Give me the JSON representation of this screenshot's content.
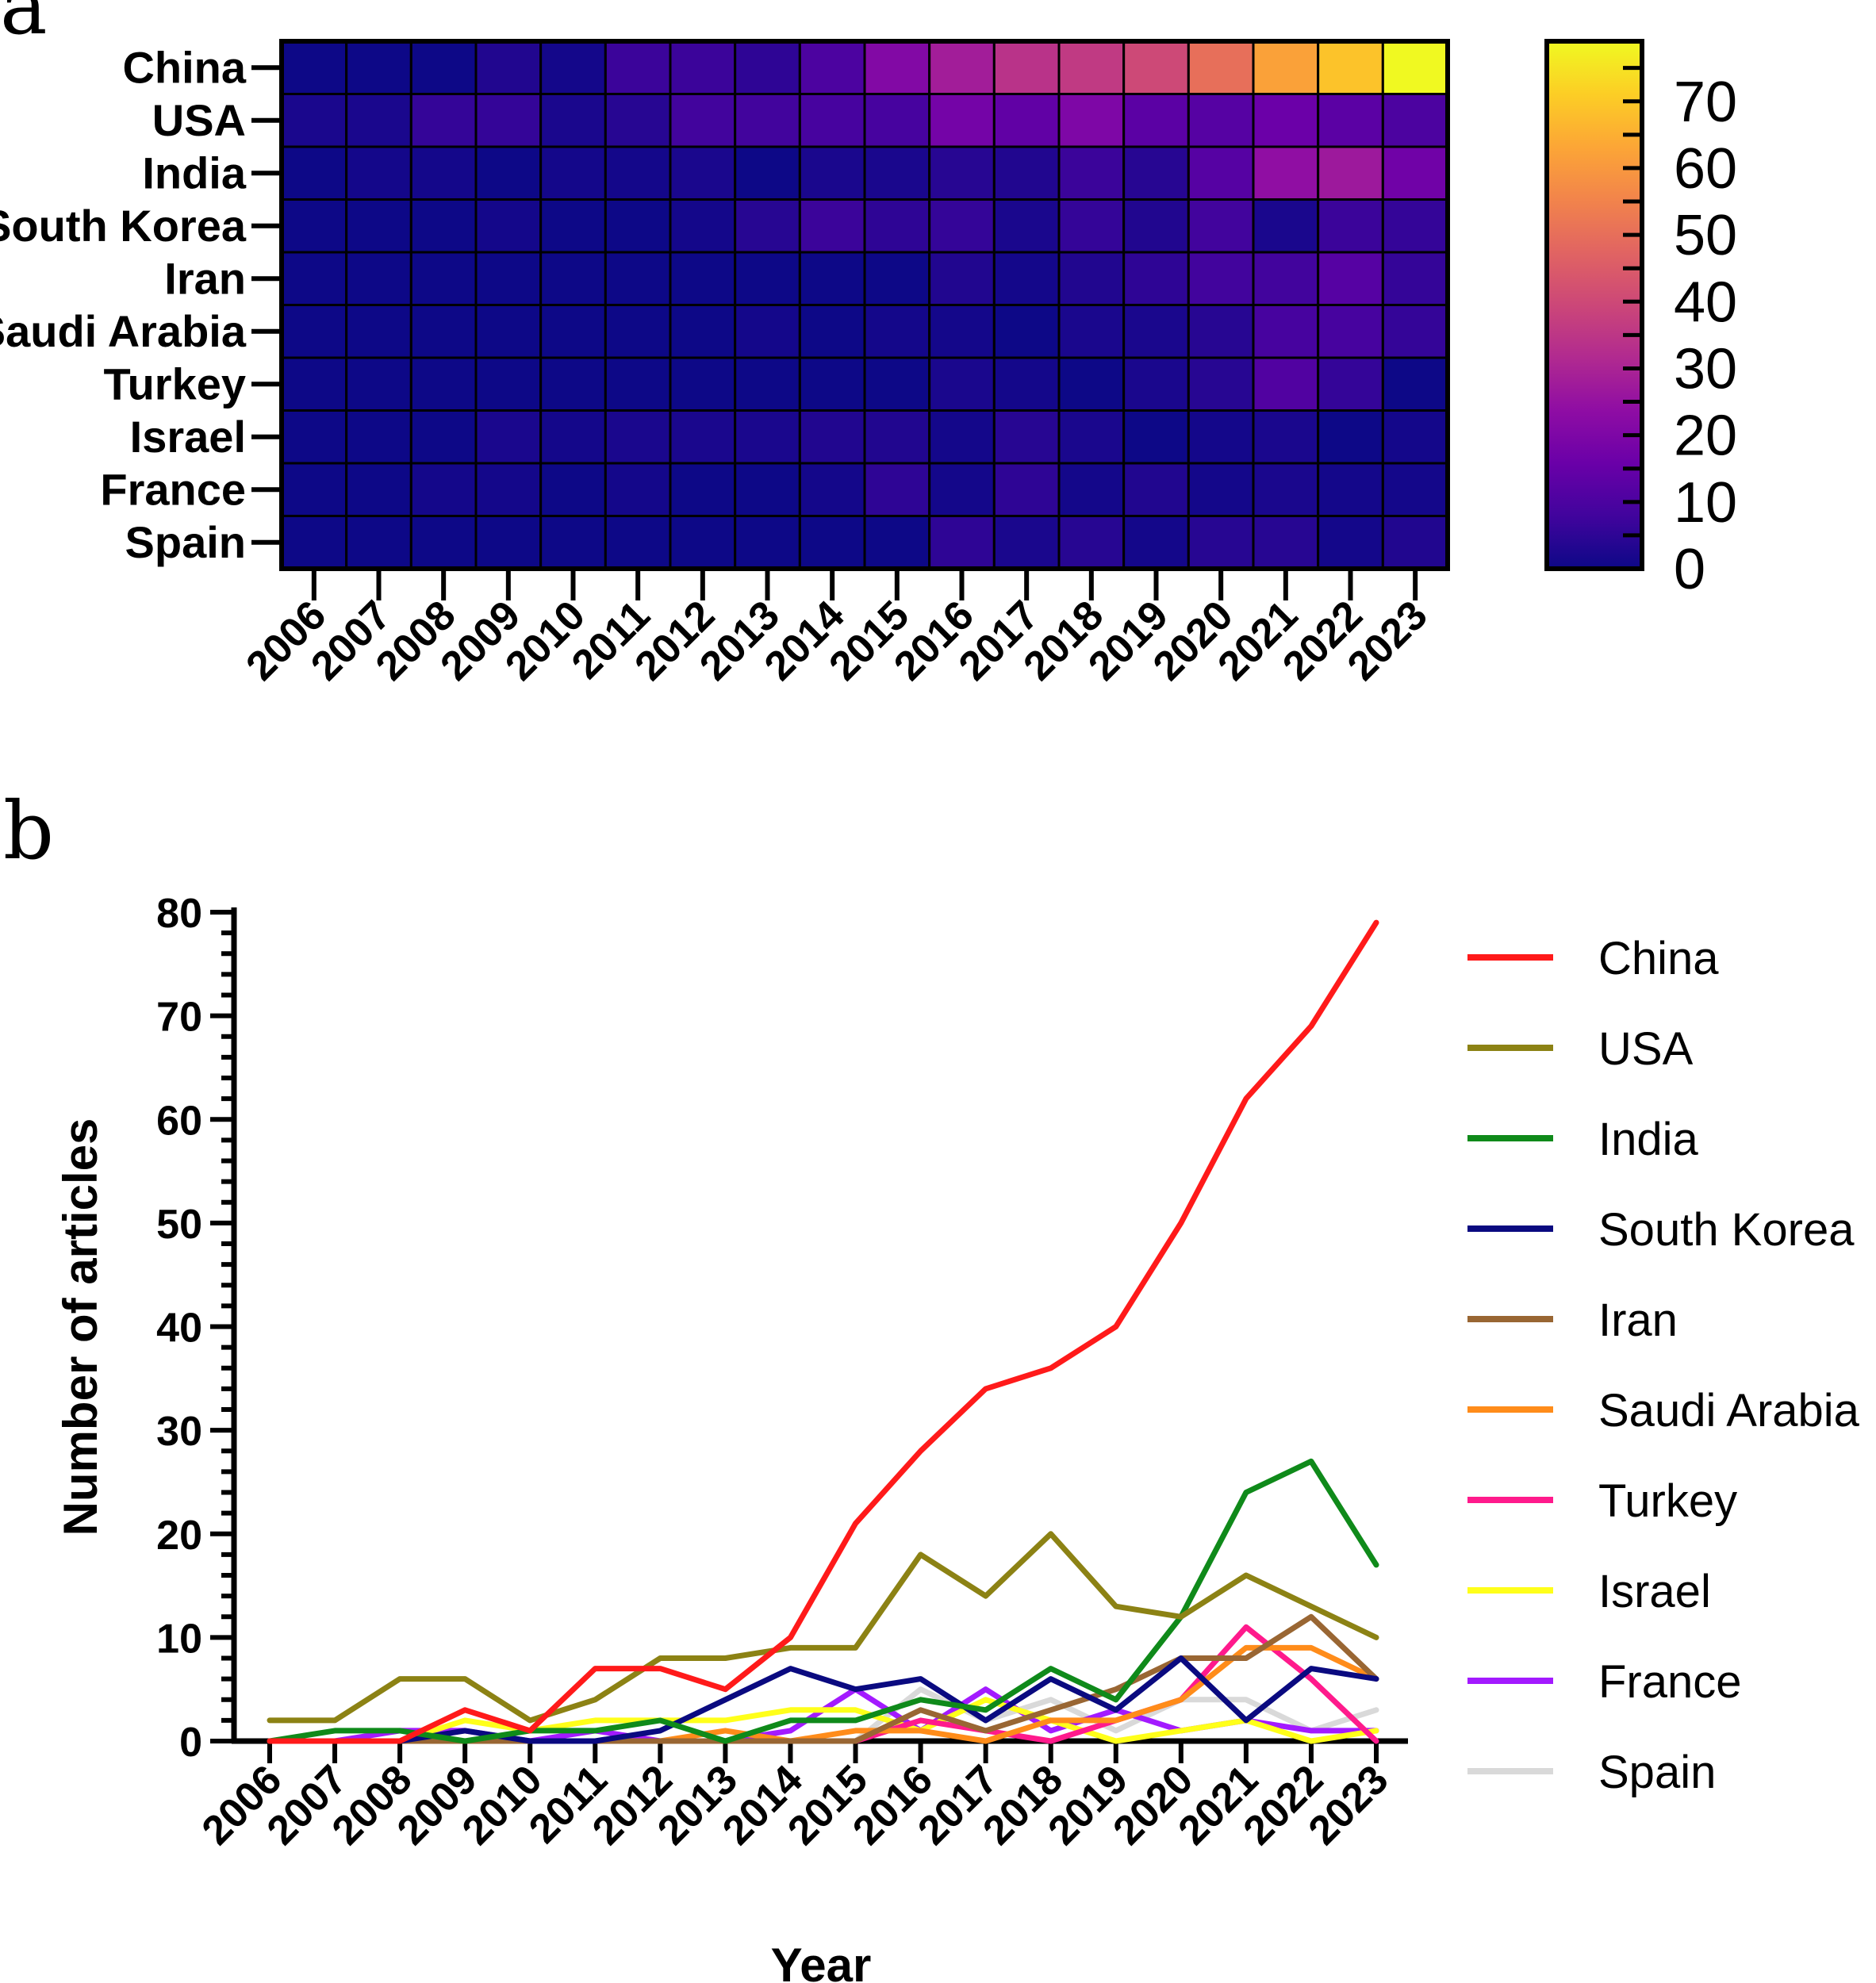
{
  "panels": {
    "a": "a",
    "b": "b"
  },
  "chart_data": [
    {
      "type": "heatmap",
      "title": "",
      "rows": [
        "China",
        "USA",
        "India",
        "South Korea",
        "Iran",
        "Saudi Arabia",
        "Turkey",
        "Israel",
        "France",
        "Spain"
      ],
      "columns": [
        "2006",
        "2007",
        "2008",
        "2009",
        "2010",
        "2011",
        "2012",
        "2013",
        "2014",
        "2015",
        "2016",
        "2017",
        "2018",
        "2019",
        "2020",
        "2021",
        "2022",
        "2023"
      ],
      "values": [
        [
          0,
          0,
          0,
          3,
          1,
          7,
          7,
          5,
          10,
          21,
          28,
          34,
          36,
          40,
          50,
          62,
          69,
          79
        ],
        [
          2,
          2,
          6,
          6,
          2,
          4,
          8,
          8,
          9,
          9,
          18,
          14,
          20,
          13,
          12,
          16,
          13,
          10
        ],
        [
          0,
          1,
          1,
          0,
          1,
          1,
          2,
          0,
          2,
          2,
          4,
          3,
          7,
          4,
          12,
          24,
          27,
          17
        ],
        [
          0,
          0,
          0,
          1,
          0,
          0,
          1,
          4,
          7,
          5,
          6,
          2,
          6,
          3,
          8,
          2,
          7,
          6
        ],
        [
          0,
          0,
          0,
          0,
          0,
          0,
          0,
          0,
          0,
          0,
          3,
          1,
          3,
          5,
          8,
          8,
          12,
          6
        ],
        [
          0,
          0,
          0,
          0,
          0,
          0,
          0,
          1,
          0,
          1,
          1,
          0,
          2,
          2,
          4,
          9,
          9,
          6
        ],
        [
          0,
          0,
          0,
          0,
          0,
          0,
          0,
          0,
          0,
          0,
          2,
          1,
          0,
          2,
          4,
          11,
          6,
          0
        ],
        [
          0,
          0,
          0,
          2,
          1,
          2,
          2,
          2,
          3,
          3,
          1,
          4,
          2,
          0,
          1,
          2,
          0,
          1
        ],
        [
          0,
          0,
          1,
          1,
          0,
          1,
          0,
          0,
          1,
          5,
          1,
          5,
          1,
          3,
          1,
          2,
          1,
          1
        ],
        [
          0,
          0,
          0,
          0,
          0,
          0,
          0,
          0,
          0,
          0,
          5,
          2,
          4,
          1,
          4,
          4,
          1,
          3
        ]
      ],
      "colorbar": {
        "min": 0,
        "max": 79,
        "ticks": [
          "0",
          "10",
          "20",
          "30",
          "40",
          "50",
          "60",
          "70"
        ],
        "colormap": "plasma"
      }
    },
    {
      "type": "line",
      "title": "",
      "xlabel": "Year",
      "ylabel": "Number of articles",
      "x": [
        "2006",
        "2007",
        "2008",
        "2009",
        "2010",
        "2011",
        "2012",
        "2013",
        "2014",
        "2015",
        "2016",
        "2017",
        "2018",
        "2019",
        "2020",
        "2021",
        "2022",
        "2023"
      ],
      "ylim": [
        0,
        80
      ],
      "yticks": [
        "0",
        "10",
        "20",
        "30",
        "40",
        "50",
        "60",
        "70",
        "80"
      ],
      "legend_position": "right",
      "series": [
        {
          "name": "China",
          "color": "#ff1a1a",
          "values": [
            0,
            0,
            0,
            3,
            1,
            7,
            7,
            5,
            10,
            21,
            28,
            34,
            36,
            40,
            50,
            62,
            69,
            79
          ]
        },
        {
          "name": "USA",
          "color": "#8c8214",
          "values": [
            2,
            2,
            6,
            6,
            2,
            4,
            8,
            8,
            9,
            9,
            18,
            14,
            20,
            13,
            12,
            16,
            13,
            10
          ]
        },
        {
          "name": "India",
          "color": "#0f8a1a",
          "values": [
            0,
            1,
            1,
            0,
            1,
            1,
            2,
            0,
            2,
            2,
            4,
            3,
            7,
            4,
            12,
            24,
            27,
            17
          ]
        },
        {
          "name": "South Korea",
          "color": "#0a0a80",
          "values": [
            0,
            0,
            0,
            1,
            0,
            0,
            1,
            4,
            7,
            5,
            6,
            2,
            6,
            3,
            8,
            2,
            7,
            6
          ]
        },
        {
          "name": "Iran",
          "color": "#996633",
          "values": [
            0,
            0,
            0,
            0,
            0,
            0,
            0,
            0,
            0,
            0,
            3,
            1,
            3,
            5,
            8,
            8,
            12,
            6
          ]
        },
        {
          "name": "Saudi Arabia",
          "color": "#ff8c1a",
          "values": [
            0,
            0,
            0,
            0,
            0,
            0,
            0,
            1,
            0,
            1,
            1,
            0,
            2,
            2,
            4,
            9,
            9,
            6
          ]
        },
        {
          "name": "Turkey",
          "color": "#ff1a8c",
          "values": [
            0,
            0,
            0,
            0,
            0,
            0,
            0,
            0,
            0,
            0,
            2,
            1,
            0,
            2,
            4,
            11,
            6,
            0
          ]
        },
        {
          "name": "Israel",
          "color": "#ffff1a",
          "values": [
            0,
            0,
            0,
            2,
            1,
            2,
            2,
            2,
            3,
            3,
            1,
            4,
            2,
            0,
            1,
            2,
            0,
            1
          ]
        },
        {
          "name": "France",
          "color": "#a31aff",
          "values": [
            0,
            0,
            1,
            1,
            0,
            1,
            0,
            0,
            1,
            5,
            1,
            5,
            1,
            3,
            1,
            2,
            1,
            1
          ]
        },
        {
          "name": "Spain",
          "color": "#d9d9d9",
          "values": [
            0,
            0,
            0,
            0,
            0,
            0,
            0,
            0,
            0,
            0,
            5,
            2,
            4,
            1,
            4,
            4,
            1,
            3
          ]
        }
      ]
    }
  ]
}
